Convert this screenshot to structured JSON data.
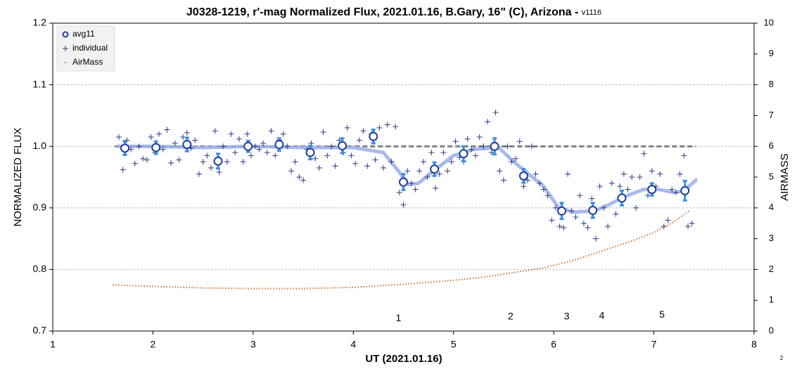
{
  "chart_data": {
    "type": "scatter",
    "title": "J0328-1219, r'-mag Normalized Flux, 2021.01.16, B.Gary, 16\" (C), Arizona - ",
    "subtitle": "v1116",
    "footnote": "2",
    "x_label": "UT (2021.01.16)",
    "y_label": "NORMALIZED FLUX",
    "y2_label": "AIRMASS",
    "xlim": [
      1,
      8
    ],
    "xticks": [
      1,
      2,
      3,
      4,
      5,
      6,
      7,
      8
    ],
    "ylim": [
      0.7,
      1.2
    ],
    "yticks": [
      0.7,
      0.8,
      0.9,
      {
        "value": 1,
        "label": "1.0"
      },
      1.1,
      1.2
    ],
    "y2lim": [
      0,
      10
    ],
    "y2ticks": [
      0,
      1,
      2,
      3,
      4,
      5,
      6,
      7,
      8,
      9,
      10
    ],
    "grid": true,
    "legend": "top-left",
    "series": [
      {
        "name": "avg11",
        "color": "#1f3d99",
        "error_color": "#3d8fe0",
        "marker": "circle",
        "x": [
          1.72,
          2.03,
          2.34,
          2.65,
          2.95,
          3.26,
          3.57,
          3.89,
          4.2,
          4.5,
          4.81,
          5.1,
          5.41,
          5.7,
          6.08,
          6.39,
          6.68,
          6.98,
          7.31
        ],
        "values": [
          0.997,
          0.998,
          1.003,
          0.976,
          1.0,
          1.003,
          0.99,
          1.001,
          1.016,
          0.942,
          0.963,
          0.988,
          1.0,
          0.952,
          0.895,
          0.896,
          0.916,
          0.93,
          0.928
        ],
        "errors": [
          0.011,
          0.01,
          0.011,
          0.012,
          0.009,
          0.01,
          0.011,
          0.012,
          0.011,
          0.013,
          0.011,
          0.012,
          0.013,
          0.011,
          0.013,
          0.012,
          0.012,
          0.01,
          0.016
        ]
      },
      {
        "name": "individual",
        "color": "#2a3a80",
        "marker": "plus",
        "x": [
          1.66,
          1.7,
          1.74,
          1.78,
          1.82,
          1.86,
          1.9,
          1.94,
          1.98,
          2.02,
          2.06,
          2.1,
          2.14,
          2.18,
          2.22,
          2.26,
          2.3,
          2.34,
          2.38,
          2.42,
          2.46,
          2.5,
          2.54,
          2.58,
          2.62,
          2.66,
          2.7,
          2.74,
          2.78,
          2.82,
          2.86,
          2.9,
          2.94,
          2.98,
          3.02,
          3.06,
          3.1,
          3.14,
          3.18,
          3.22,
          3.26,
          3.3,
          3.34,
          3.38,
          3.42,
          3.46,
          3.5,
          3.54,
          3.58,
          3.62,
          3.66,
          3.7,
          3.74,
          3.78,
          3.82,
          3.86,
          3.9,
          3.94,
          3.98,
          4.02,
          4.06,
          4.1,
          4.14,
          4.18,
          4.22,
          4.26,
          4.3,
          4.34,
          4.38,
          4.42,
          4.46,
          4.5,
          4.54,
          4.58,
          4.62,
          4.66,
          4.7,
          4.74,
          4.78,
          4.82,
          4.86,
          4.9,
          4.94,
          4.98,
          5.02,
          5.06,
          5.1,
          5.14,
          5.18,
          5.22,
          5.26,
          5.3,
          5.34,
          5.38,
          5.42,
          5.46,
          5.5,
          5.54,
          5.58,
          5.62,
          5.66,
          5.7,
          5.74,
          5.78,
          5.82,
          5.86,
          5.9,
          5.94,
          5.98,
          6.02,
          6.06,
          6.1,
          6.14,
          6.18,
          6.22,
          6.26,
          6.3,
          6.34,
          6.38,
          6.42,
          6.46,
          6.5,
          6.54,
          6.58,
          6.62,
          6.66,
          6.7,
          6.74,
          6.78,
          6.82,
          6.86,
          6.9,
          6.94,
          6.98,
          7.02,
          7.06,
          7.1,
          7.14,
          7.18,
          7.22,
          7.26,
          7.3,
          7.34,
          7.38
        ],
        "values": [
          1.015,
          0.962,
          1.01,
          0.995,
          0.972,
          1.0,
          0.98,
          0.978,
          1.015,
          0.99,
          1.02,
          0.995,
          1.027,
          0.973,
          1.005,
          0.978,
          1.015,
          1.022,
          0.997,
          1.01,
          0.955,
          0.975,
          0.985,
          0.965,
          1.025,
          0.958,
          1.0,
          0.975,
          1.02,
          0.99,
          1.012,
          0.975,
          1.02,
          0.985,
          1.0,
          0.995,
          1.005,
          0.99,
          1.025,
          0.985,
          1.01,
          1.02,
          1.0,
          0.96,
          0.975,
          0.95,
          0.945,
          0.995,
          1.005,
          0.98,
          0.965,
          1.023,
          0.985,
          1.0,
          0.968,
          1.01,
          0.99,
          1.03,
          0.985,
          0.972,
          1.01,
          1.025,
          0.968,
          1.02,
          0.978,
          1.03,
          0.965,
          1.035,
          0.975,
          1.032,
          0.925,
          0.905,
          0.96,
          0.94,
          0.93,
          0.96,
          0.975,
          0.95,
          0.99,
          0.932,
          0.955,
          0.99,
          0.96,
          0.975,
          1.008,
          0.982,
          0.975,
          1.012,
          0.995,
          0.985,
          1.015,
          1.0,
          1.04,
          0.99,
          1.055,
          0.96,
          0.945,
          1.0,
          0.975,
          0.98,
          1.008,
          0.935,
          0.945,
          1.0,
          0.955,
          0.94,
          0.93,
          0.92,
          0.88,
          0.9,
          0.87,
          0.868,
          0.955,
          0.895,
          0.885,
          0.92,
          0.875,
          0.868,
          0.915,
          0.85,
          0.935,
          0.9,
          0.87,
          0.94,
          0.89,
          0.935,
          0.955,
          0.93,
          0.95,
          0.9,
          0.95,
          0.988,
          0.92,
          0.96,
          0.935,
          0.955,
          0.87,
          0.88,
          0.93,
          0.925,
          0.955,
          0.985,
          0.87,
          0.875
        ]
      },
      {
        "name": "AirMass",
        "color": "#c8763a",
        "marker": "dot",
        "axis": "y2",
        "x": [
          1.6,
          2.0,
          2.5,
          3.0,
          3.5,
          4.0,
          4.5,
          5.0,
          5.3,
          5.6,
          5.9,
          6.2,
          6.5,
          6.8,
          7.0,
          7.2,
          7.35
        ],
        "values": [
          1.5,
          1.45,
          1.4,
          1.38,
          1.38,
          1.42,
          1.52,
          1.65,
          1.75,
          1.9,
          2.05,
          2.3,
          2.62,
          2.95,
          3.2,
          3.55,
          3.9
        ]
      },
      {
        "color": "#9aaee6",
        "style": "line",
        "x": [
          1.65,
          2.0,
          2.5,
          3.0,
          3.5,
          4.0,
          4.3,
          4.45,
          4.55,
          4.65,
          4.8,
          5.0,
          5.2,
          5.45,
          5.6,
          5.75,
          5.9,
          6.05,
          6.2,
          6.4,
          6.55,
          6.7,
          6.9,
          7.05,
          7.2,
          7.3,
          7.42
        ],
        "values": [
          1.0,
          1.0,
          0.998,
          1.0,
          0.998,
          0.998,
          0.99,
          0.96,
          0.938,
          0.94,
          0.96,
          0.985,
          0.995,
          0.998,
          0.975,
          0.955,
          0.935,
          0.9,
          0.893,
          0.895,
          0.905,
          0.918,
          0.93,
          0.93,
          0.925,
          0.928,
          0.945
        ]
      },
      {
        "color": "#808080",
        "style": "dashed",
        "x": [
          1.62,
          7.42
        ],
        "values": [
          1.0,
          1.0
        ]
      }
    ],
    "annotations": [
      {
        "text": "1",
        "x": 4.45,
        "y": 0.72
      },
      {
        "text": "2",
        "x": 5.57,
        "y": 0.723
      },
      {
        "text": "3",
        "x": 6.13,
        "y": 0.723
      },
      {
        "text": "4",
        "x": 6.48,
        "y": 0.724
      },
      {
        "text": "5",
        "x": 7.08,
        "y": 0.726
      }
    ]
  }
}
